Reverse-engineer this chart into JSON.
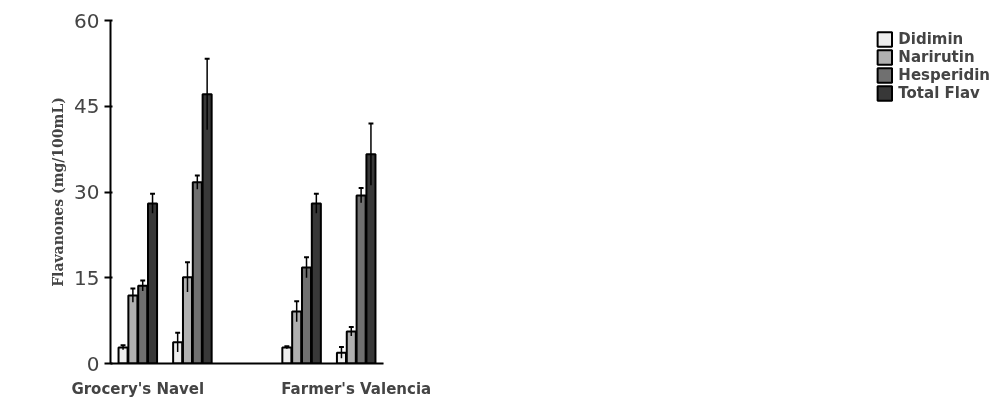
{
  "chart_data": {
    "type": "bar",
    "ylabel": "Flavanones (mg/100mL)",
    "categories": [
      "Grocery's Navel",
      null,
      null,
      null,
      "Farmer's Valencia"
    ],
    "series": [
      {
        "name": "Didimin",
        "color": "#eeeeee",
        "values": [
          2.8,
          3.7,
          null,
          2.8,
          1.9
        ],
        "errors": [
          0.4,
          1.7,
          null,
          0.2,
          1.0
        ]
      },
      {
        "name": "Narirutin",
        "color": "#b0b0b0",
        "values": [
          11.9,
          15.1,
          null,
          9.1,
          5.6
        ],
        "errors": [
          1.2,
          2.6,
          null,
          1.8,
          0.8
        ]
      },
      {
        "name": "Hesperidin",
        "color": "#707070",
        "values": [
          13.6,
          31.7,
          null,
          16.8,
          29.4
        ],
        "errors": [
          0.9,
          1.2,
          null,
          1.8,
          1.3
        ]
      },
      {
        "name": "Total Flav",
        "color": "#383838",
        "values": [
          28.0,
          47.1,
          null,
          28.0,
          36.6
        ],
        "errors": [
          1.7,
          6.2,
          null,
          1.7,
          5.4
        ]
      }
    ],
    "ylim": [
      0,
      60
    ],
    "yticks": [
      0,
      15,
      30,
      45,
      60
    ],
    "grid": false,
    "legend": "right"
  }
}
